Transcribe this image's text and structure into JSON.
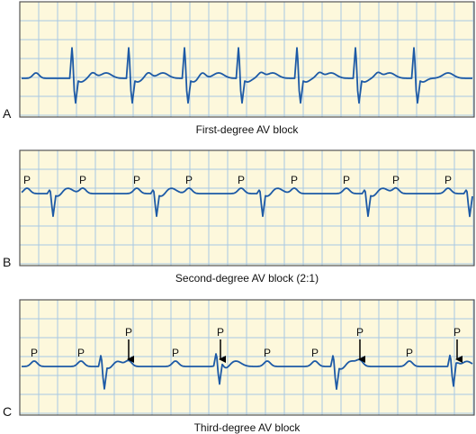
{
  "panels": [
    {
      "letter": "A",
      "caption": "First-degree AV block"
    },
    {
      "letter": "B",
      "caption": "Second-degree AV block (2:1)",
      "p_labels": [
        "P",
        "P",
        "P",
        "P",
        "P",
        "P",
        "P",
        "P",
        "P"
      ]
    },
    {
      "letter": "C",
      "caption": "Third-degree AV block",
      "p_labels": [
        "P",
        "P",
        "P",
        "P",
        "P",
        "P",
        "P",
        "P",
        "P",
        "P"
      ]
    }
  ]
}
